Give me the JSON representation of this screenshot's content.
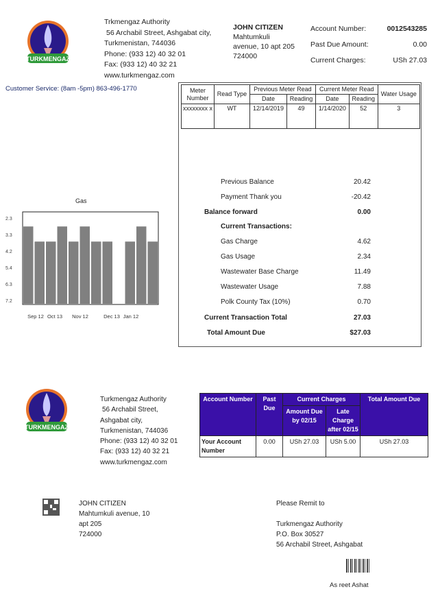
{
  "header": {
    "company": "Trkmengaz Authority",
    "address1": "56 Archabil Street, Ashgabat city,",
    "address2": "Turkmenistan, 744036",
    "phone": "Phone: (933 12) 40 32 01",
    "fax": "Fax: (933 12) 40 32 21",
    "web": "www.turkmengaz.com",
    "logo_text": "TURKMENGAZ"
  },
  "customer": {
    "name": "JOHN CITIZEN",
    "line1": "Mahtumkuli",
    "line2": "avenue, 10  apt 205",
    "line3": "724000"
  },
  "account": {
    "number_label": "Account Number:",
    "number": "0012543285",
    "past_due_label": "Past Due Amount:",
    "past_due": "0.00",
    "current_label": "Current Charges:",
    "current": "USh 27.03"
  },
  "customer_service": "Customer Service: (8am -5pm) 863-496-1770",
  "meter_table": {
    "h_meter": "Meter Number",
    "h_read": "Read Type",
    "h_prev": "Previous Meter Read",
    "h_curr": "Current Meter Read",
    "h_water": "Water Usage",
    "h_date": "Date",
    "h_reading": "Reading",
    "row": {
      "meter": "xxxxxxxx x",
      "type": "WT",
      "prev_date": "12/14/2019",
      "prev_reading": "49",
      "curr_date": "1/14/2020",
      "curr_reading": "52",
      "usage": "3"
    }
  },
  "transactions": [
    {
      "label": "Previous Balance",
      "value": "20.42"
    },
    {
      "label": "Payment Thank you",
      "value": "-20.42"
    },
    {
      "label": "Balance forward",
      "value": "0.00"
    },
    {
      "label": "Current Transactions:",
      "value": ""
    },
    {
      "label": "Gas Charge",
      "value": "4.62"
    },
    {
      "label": "Gas Usage",
      "value": "2.34"
    },
    {
      "label": "Wastewater Base Charge",
      "value": "11.49"
    },
    {
      "label": "Wastewater Usage",
      "value": "7.88"
    },
    {
      "label": "Polk County Tax (10%)",
      "value": "0.70"
    },
    {
      "label": "Current Transaction Total",
      "value": "27.03"
    },
    {
      "label": "Total Amount Due",
      "value": "$27.03"
    }
  ],
  "chart_data": {
    "type": "bar",
    "title": "Gas",
    "yticks": [
      "2.3",
      "3.3",
      "4.2",
      "5.4",
      "6.3",
      "7.2"
    ],
    "ylim": [
      2.3,
      7.2
    ],
    "y_inverted": true,
    "xticks": [
      "Sep 12",
      "Oct 13",
      "Nov 12",
      "Dec 13",
      "Jan 12"
    ],
    "values": [
      2.8,
      3.7,
      3.7,
      2.8,
      3.7,
      2.8,
      3.7,
      3.7,
      null,
      3.7,
      2.8,
      3.7
    ],
    "bar_color": "#808080"
  },
  "stub": {
    "company": "Turkmengaz Authority",
    "a1": "56 Archabil Street,",
    "a2": "Ashgabat city,",
    "a3": "Turkmenistan, 744036",
    "phone": "Phone: (933 12) 40 32 01",
    "fax": "Fax: (933 12) 40 32 21",
    "web": "www.turkmengaz.com"
  },
  "pay_table": {
    "h_account": "Account Number",
    "h_past": "Past Due",
    "h_current": "Current Charges",
    "h_amount": "Amount Due by 02/15",
    "h_late": "Late Charge after 02/15",
    "h_total": "Total Amount Due",
    "account": "Your Account Number",
    "past": "0.00",
    "amount": "USh 27.03",
    "late": "USh 5.00",
    "total": "USh 27.03",
    "header_color": "#3a10a8"
  },
  "mail": {
    "name": "JOHN CITIZEN",
    "l1": "Mahtumkuli avenue,  10",
    "l2": "apt 205",
    "l3": "724000"
  },
  "remit": {
    "label": "Please Remit to",
    "company": "Turkmengaz Authority",
    "box": "P.O. Box 30527",
    "street": "56 Archabil Street, Ashgabat",
    "footer": "As reet  Ashat"
  }
}
